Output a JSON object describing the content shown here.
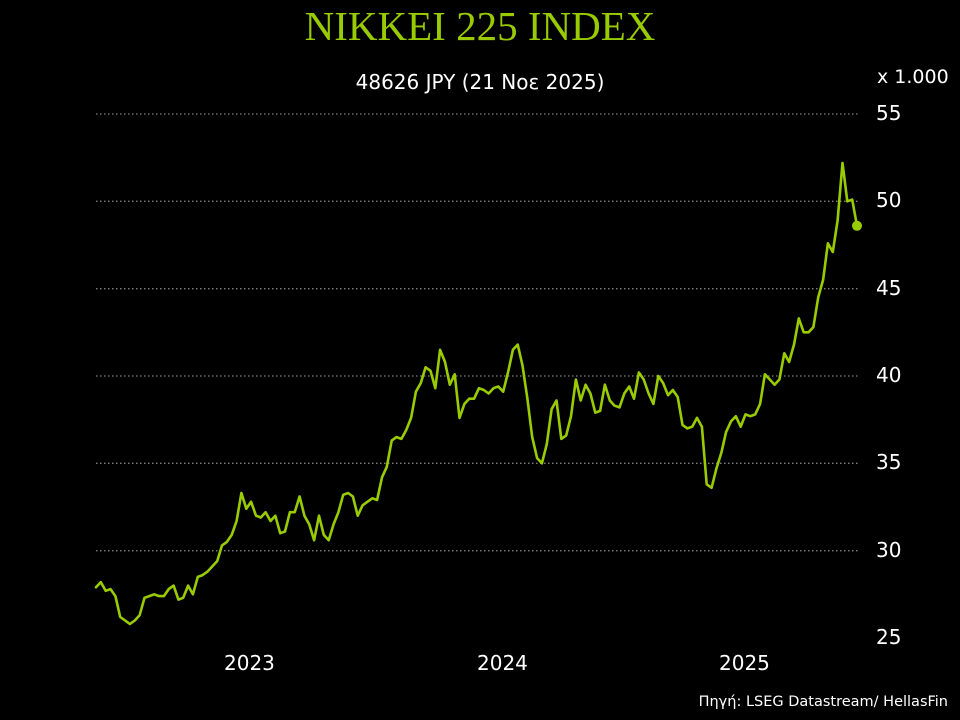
{
  "title": "NIKKEI 225 INDEX",
  "subtitle": "48626 JPY (21 Νοε 2025)",
  "unit_label": "x 1.000",
  "source": "Πηγή: LSEG Datastream/ HellasFin",
  "colors": {
    "background": "#000000",
    "title": "#99cc00",
    "line": "#99cc00",
    "grid": "#7f7f7f",
    "text": "#ffffff"
  },
  "y_ticks": [
    "55",
    "50",
    "45",
    "40",
    "35",
    "30",
    "25"
  ],
  "x_ticks": [
    "2023",
    "2024",
    "2025"
  ],
  "chart_data": {
    "type": "line",
    "title": "NIKKEI 225 INDEX",
    "subtitle": "48626 JPY (21 Νοε 2025)",
    "xlabel": "",
    "ylabel": "x 1.000 (JPY)",
    "ylim": [
      25,
      55
    ],
    "yticks": [
      25,
      30,
      35,
      40,
      45,
      50,
      55
    ],
    "xtick_labels": [
      "2023",
      "2024",
      "2025"
    ],
    "grid": "horizontal dotted",
    "legend": "none",
    "last_point_marker": true,
    "last_value": 48.626,
    "x_range": "mid-2022 to Nov 2025 (weekly)",
    "series": [
      {
        "name": "Nikkei 225 (thousands JPY)",
        "values": [
          27.9,
          28.2,
          27.7,
          27.8,
          27.4,
          26.2,
          26.0,
          25.8,
          26.0,
          26.3,
          27.3,
          27.4,
          27.5,
          27.4,
          27.4,
          27.8,
          28.0,
          27.2,
          27.3,
          28.0,
          27.5,
          28.5,
          28.6,
          28.8,
          29.1,
          29.4,
          30.3,
          30.5,
          30.9,
          31.7,
          33.3,
          32.4,
          32.8,
          32.0,
          31.9,
          32.2,
          31.7,
          32.0,
          31.0,
          31.1,
          32.2,
          32.2,
          33.1,
          32.0,
          31.5,
          30.6,
          32.0,
          30.9,
          30.6,
          31.5,
          32.2,
          33.2,
          33.3,
          33.1,
          32.0,
          32.6,
          32.8,
          33.0,
          32.9,
          34.2,
          34.8,
          36.3,
          36.5,
          36.4,
          36.9,
          37.6,
          39.1,
          39.6,
          40.5,
          40.3,
          39.3,
          41.5,
          40.8,
          39.5,
          40.1,
          37.6,
          38.4,
          38.7,
          38.7,
          39.3,
          39.2,
          39.0,
          39.3,
          39.4,
          39.1,
          40.2,
          41.5,
          41.8,
          40.6,
          38.7,
          36.5,
          35.3,
          35.0,
          36.1,
          38.1,
          38.6,
          36.4,
          36.6,
          37.7,
          39.8,
          38.6,
          39.5,
          39.0,
          37.9,
          38.0,
          39.5,
          38.6,
          38.3,
          38.2,
          39.0,
          39.4,
          38.7,
          40.2,
          39.8,
          39.0,
          38.4,
          40.0,
          39.6,
          38.9,
          39.2,
          38.8,
          37.2,
          37.0,
          37.1,
          37.6,
          37.1,
          33.8,
          33.6,
          34.7,
          35.6,
          36.8,
          37.4,
          37.7,
          37.1,
          37.8,
          37.7,
          37.8,
          38.4,
          40.1,
          39.8,
          39.5,
          39.8,
          41.3,
          40.8,
          41.8,
          43.3,
          42.5,
          42.5,
          42.8,
          44.5,
          45.5,
          47.6,
          47.1,
          48.9,
          52.2,
          50.0,
          50.1,
          48.6
        ]
      }
    ]
  }
}
